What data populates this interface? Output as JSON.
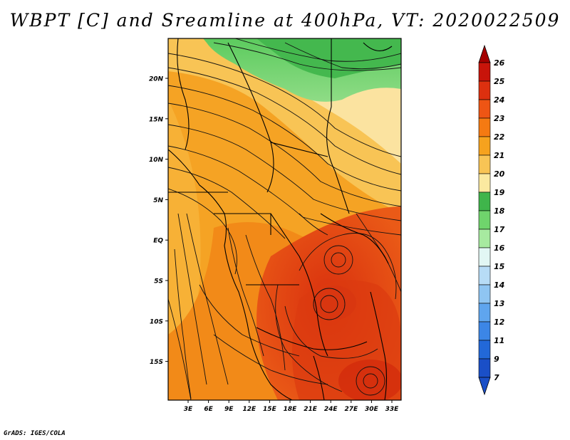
{
  "title": "WBPT [C] and Sreamline at 400hPa, VT: 2020022509",
  "credit": "GrADS: IGES/COLA",
  "map": {
    "variable": "WBPT",
    "units": "C",
    "level": "400hPa",
    "valid_time": "2020022509",
    "lat_labels": [
      "20N",
      "15N",
      "10N",
      "5N",
      "EQ",
      "5S",
      "10S",
      "15S"
    ],
    "lon_labels": [
      "3E",
      "6E",
      "9E",
      "12E",
      "15E",
      "18E",
      "21E",
      "24E",
      "27E",
      "30E",
      "33E"
    ]
  },
  "colorbar": {
    "labels": [
      "26",
      "25",
      "24",
      "23",
      "22",
      "21",
      "20",
      "19",
      "18",
      "17",
      "16",
      "15",
      "14",
      "13",
      "12",
      "11",
      "9",
      "7"
    ],
    "colors": [
      "#a50000",
      "#c8140a",
      "#dd300f",
      "#ee5514",
      "#f57a12",
      "#f6a21e",
      "#f8c455",
      "#fbe9a0",
      "#3fb54b",
      "#6fd46c",
      "#a7eaa0",
      "#e2f7f4",
      "#b7dcf6",
      "#8fc5f2",
      "#5fa5ee",
      "#3c86e6",
      "#2268d8",
      "#1a4fc7"
    ]
  }
}
